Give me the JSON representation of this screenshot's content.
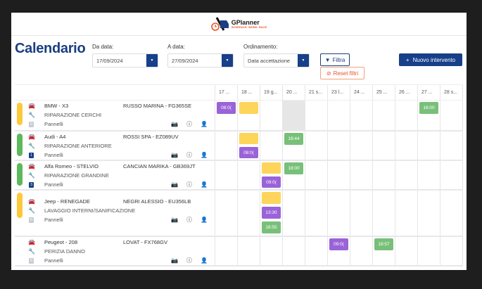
{
  "brand": {
    "name": "GPlanner",
    "tagline": "SCHEDULE. WORK. RACE"
  },
  "page_title": "Calendario",
  "filters": {
    "from_label": "Da data:",
    "from_value": "17/09/2024",
    "to_label": "A data:",
    "to_value": "27/09/2024",
    "order_label": "Ordinamento:",
    "order_value": "Data accettazione",
    "filter_button": "Filtra",
    "reset_button": "Reset filtri"
  },
  "new_button": "Nuovo intervento",
  "colors": {
    "primary": "#173f8a",
    "purple": "#9a63d8",
    "green": "#78c07a",
    "yellow": "#fdd55a",
    "orange": "#e8542a"
  },
  "days": [
    "17 ...",
    "18 ...",
    "19 g...",
    "20 ...",
    "21 s...",
    "23 l...",
    "24 ...",
    "25 ...",
    "26 ...",
    "27 ...",
    "28 s..."
  ],
  "rows": [
    {
      "vehicle": "BMW - X3",
      "customer": "RUSSO MARINA - FG365SE",
      "job": "RIPARAZIONE CERCHI",
      "panels": "Pannelli",
      "badge": "0",
      "status_color": "#fdc93a",
      "wrench_color": "#f5b31b",
      "car_color": "#444",
      "badge_color": "#c8ccd2",
      "cells": [
        [
          {
            "t": "08:0(",
            "c": "p"
          }
        ],
        [
          {
            "t": "",
            "c": "y"
          }
        ],
        [],
        "gray",
        [],
        [],
        [],
        [],
        [],
        [
          {
            "t": "18:00",
            "c": "g"
          }
        ],
        []
      ]
    },
    {
      "vehicle": "Audi - A4",
      "customer": "ROSSI SPA - EZ089UV",
      "job": "RIPARAZIONE ANTERIORE",
      "panels": "Pannelli",
      "badge": "1",
      "status_color": "#5cb85c",
      "wrench_color": "#2e9e3e",
      "car_color": "#444",
      "badge_color": "#173f8a",
      "cells": [
        [],
        [
          {
            "t": "",
            "c": "y"
          },
          {
            "t": "08:0(",
            "c": "p"
          }
        ],
        [],
        [
          {
            "t": "18:44",
            "c": "g"
          }
        ],
        [],
        [],
        [],
        [],
        [],
        [],
        []
      ]
    },
    {
      "vehicle": "Alfa Romeo - STELVIO",
      "customer": "CANCIAN MARIKA - GB369JT",
      "job": "RIPARAZIONE GRANDINE",
      "panels": "Pannelli",
      "badge": "3",
      "status_color": "#5cb85c",
      "wrench_color": "#2e9e3e",
      "car_color": "#3a8fb7",
      "badge_color": "#173f8a",
      "cells": [
        [],
        [],
        [
          {
            "t": "",
            "c": "y"
          },
          {
            "t": "09:0(",
            "c": "p"
          }
        ],
        [
          {
            "t": "18:00",
            "c": "g"
          }
        ],
        [],
        [],
        [],
        [],
        [],
        [],
        []
      ]
    },
    {
      "vehicle": "Jeep - RENEGADE",
      "customer": "NEGRI ALESSIO - EU356LB",
      "job": "LAVAGGIO INTERNI/SANIFICAZIONE",
      "panels": "Pannelli",
      "badge": "0",
      "status_color": "#fdc93a",
      "wrench_color": "#222",
      "car_color": "#444",
      "badge_color": "#c8ccd2",
      "cells": [
        [],
        [],
        [
          {
            "t": "",
            "c": "y"
          },
          {
            "t": "13:30",
            "c": "p"
          },
          {
            "t": "18:55",
            "c": "g"
          }
        ],
        [],
        [],
        [],
        [],
        [],
        [],
        [],
        []
      ]
    },
    {
      "vehicle": "Peugeot - 208",
      "customer": "LOVAT - FX768GV",
      "job": "PERIZIA DANNO",
      "panels": "Pannelli",
      "badge": "0",
      "status_color": "",
      "wrench_color": "#222",
      "car_color": "#444",
      "badge_color": "#c8ccd2",
      "cells": [
        [],
        [],
        [],
        [],
        [],
        [
          {
            "t": "09:0(",
            "c": "p"
          }
        ],
        [],
        [
          {
            "t": "18:57",
            "c": "g"
          }
        ],
        [],
        [],
        []
      ]
    }
  ]
}
